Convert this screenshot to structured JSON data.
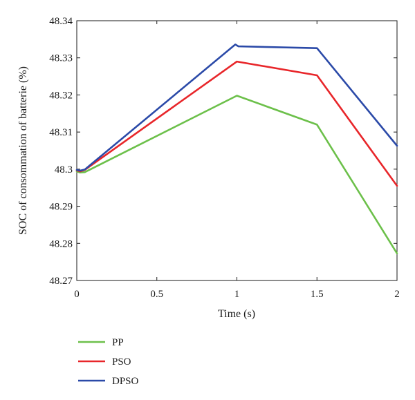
{
  "chart_data": {
    "type": "line",
    "xlabel": "Time (s)",
    "ylabel": "SOC of consommation of batterie (%)",
    "xlim": [
      0,
      2
    ],
    "ylim": [
      48.27,
      48.34
    ],
    "xticks": [
      0,
      0.5,
      1,
      1.5,
      2
    ],
    "xtick_labels": [
      "0",
      "0.5",
      "1",
      "1.5",
      "2"
    ],
    "yticks": [
      48.27,
      48.28,
      48.29,
      48.3,
      48.31,
      48.32,
      48.33,
      48.34
    ],
    "ytick_labels": [
      "48.27",
      "48.28",
      "48.29",
      "48.3",
      "48.31",
      "48.32",
      "48.33",
      "48.34"
    ],
    "grid": false,
    "legend_position": "bottom-left, below plot",
    "series": [
      {
        "name": "PP",
        "color": "#6cc04a",
        "x": [
          0,
          0.02,
          0.05,
          1.0,
          1.5,
          2.0
        ],
        "y": [
          48.2994,
          48.2991,
          48.2992,
          48.3198,
          48.312,
          48.2773
        ]
      },
      {
        "name": "PSO",
        "color": "#e8262a",
        "x": [
          0,
          0.02,
          0.05,
          1.0,
          1.5,
          2.0
        ],
        "y": [
          48.2997,
          48.2994,
          48.2998,
          48.329,
          48.3253,
          48.2955
        ]
      },
      {
        "name": "DPSO",
        "color": "#2b4aa8",
        "x": [
          0,
          0.02,
          0.05,
          0.99,
          1.01,
          1.5,
          2.0
        ],
        "y": [
          48.2998,
          48.2996,
          48.2999,
          48.3336,
          48.3331,
          48.3326,
          48.3063
        ]
      }
    ]
  }
}
